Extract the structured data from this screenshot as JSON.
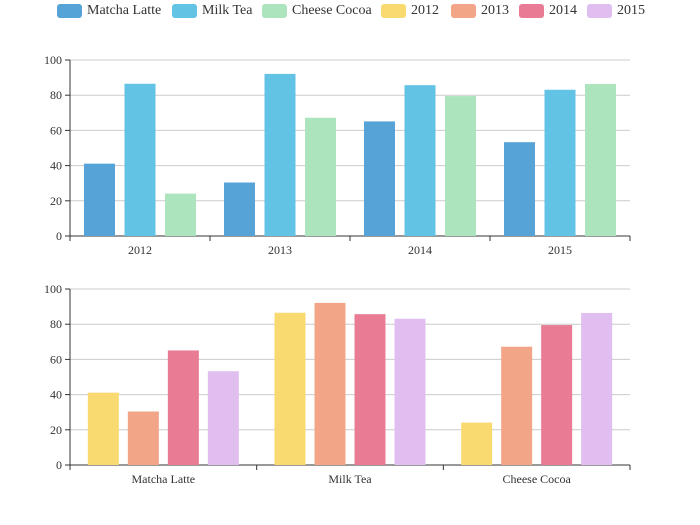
{
  "legend": [
    {
      "name": "Matcha Latte",
      "color": "#56a3d8"
    },
    {
      "name": "Milk Tea",
      "color": "#62c3e4"
    },
    {
      "name": "Cheese Cocoa",
      "color": "#ace5bd"
    },
    {
      "name": "2012",
      "color": "#f9da71"
    },
    {
      "name": "2013",
      "color": "#f2a587"
    },
    {
      "name": "2014",
      "color": "#e97b94"
    },
    {
      "name": "2015",
      "color": "#e0bef0"
    }
  ],
  "chart_data": [
    {
      "type": "bar",
      "title": "",
      "xlabel": "",
      "ylabel": "",
      "categories": [
        "2012",
        "2013",
        "2014",
        "2015"
      ],
      "ylim": [
        0,
        100
      ],
      "yticks": [
        0,
        20,
        40,
        60,
        80,
        100
      ],
      "grid": true,
      "legend_position": "top",
      "series": [
        {
          "name": "Matcha Latte",
          "color": "#56a3d8",
          "values": [
            41.1,
            30.4,
            65.1,
            53.3
          ]
        },
        {
          "name": "Milk Tea",
          "color": "#62c3e4",
          "values": [
            86.5,
            92.1,
            85.7,
            83.1
          ]
        },
        {
          "name": "Cheese Cocoa",
          "color": "#ace5bd",
          "values": [
            24.1,
            67.2,
            79.5,
            86.4
          ]
        }
      ]
    },
    {
      "type": "bar",
      "title": "",
      "xlabel": "",
      "ylabel": "",
      "categories": [
        "Matcha Latte",
        "Milk Tea",
        "Cheese Cocoa"
      ],
      "ylim": [
        0,
        100
      ],
      "yticks": [
        0,
        20,
        40,
        60,
        80,
        100
      ],
      "grid": true,
      "legend_position": "top",
      "series": [
        {
          "name": "2012",
          "color": "#f9da71",
          "values": [
            41.1,
            86.5,
            24.1
          ]
        },
        {
          "name": "2013",
          "color": "#f2a587",
          "values": [
            30.4,
            92.1,
            67.2
          ]
        },
        {
          "name": "2014",
          "color": "#e97b94",
          "values": [
            65.1,
            85.7,
            79.5
          ]
        },
        {
          "name": "2015",
          "color": "#e0bef0",
          "values": [
            53.3,
            83.1,
            86.4
          ]
        }
      ]
    }
  ]
}
